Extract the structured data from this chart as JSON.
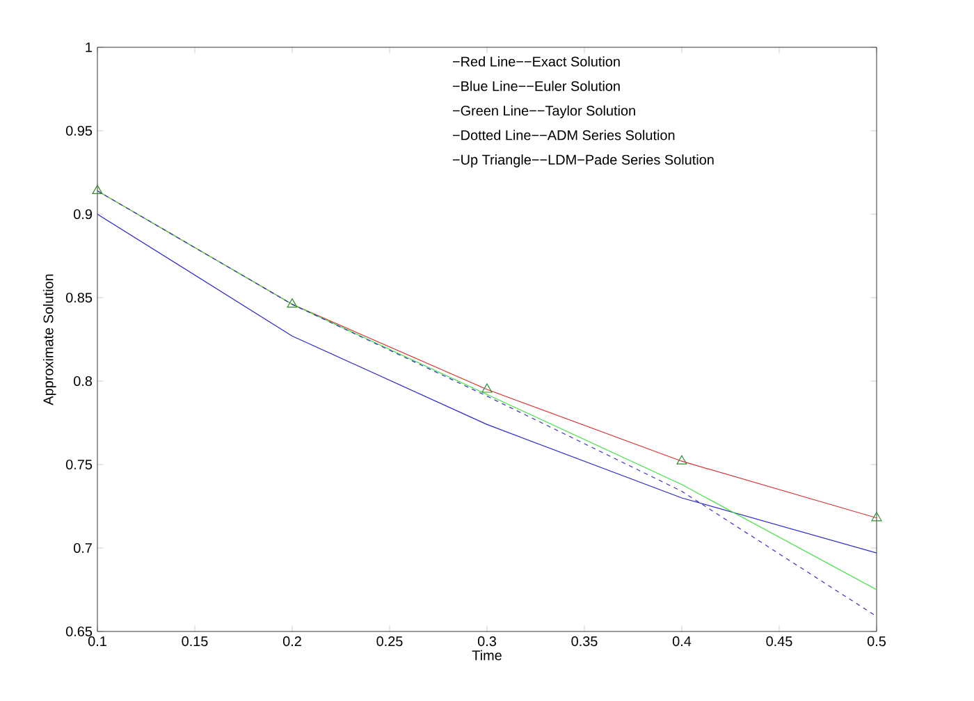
{
  "chart_data": {
    "type": "line",
    "xlabel": "Time",
    "ylabel": "Approximate Solution",
    "annotations": [
      "−Red Line−−Exact Solution",
      "−Blue Line−−Euler Solution",
      "−Green Line−−Taylor Solution",
      "−Dotted Line−−ADM Series Solution",
      "−Up Triangle−−LDM−Pade Series Solution"
    ],
    "x": [
      0.1,
      0.2,
      0.3,
      0.4,
      0.5
    ],
    "xlim": [
      0.1,
      0.5
    ],
    "xticks": [
      0.1,
      0.15,
      0.2,
      0.25,
      0.3,
      0.35,
      0.4,
      0.45,
      0.5
    ],
    "ylim": [
      0.65,
      1
    ],
    "yticks": [
      0.65,
      0.7,
      0.75,
      0.8,
      0.85,
      0.9,
      0.95,
      1
    ],
    "series": [
      {
        "color": "#d83030",
        "values": [
          0.914,
          0.846,
          0.795,
          0.752,
          0.718
        ]
      },
      {
        "color": "#2828c8",
        "values": [
          0.9,
          0.827,
          0.774,
          0.73,
          0.697
        ]
      },
      {
        "color": "#40e040",
        "values": [
          0.914,
          0.846,
          0.792,
          0.738,
          0.675
        ]
      },
      {
        "color": "#3030c0",
        "line_style": "dashed",
        "values": [
          0.914,
          0.846,
          0.791,
          0.734,
          0.659
        ]
      },
      {
        "type": "scatter",
        "marker": "triangle",
        "color": "#2e8b2e",
        "values": [
          0.914,
          0.846,
          0.795,
          0.752,
          0.718
        ]
      }
    ]
  }
}
